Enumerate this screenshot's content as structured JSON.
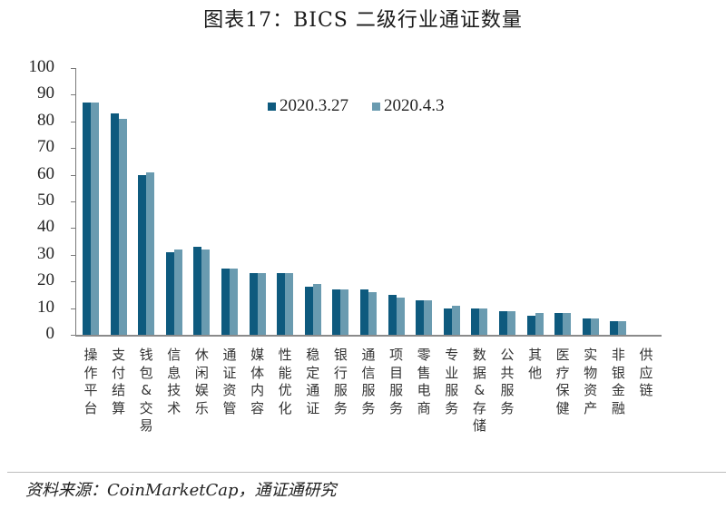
{
  "title": "图表17：BICS 二级行业通证数量",
  "source": "资料来源：CoinMarketCap，通证通研究",
  "colors": {
    "series0": "#0e5a7e",
    "series1": "#6a9bb0"
  },
  "chart_data": {
    "type": "bar",
    "title": "图表17：BICS 二级行业通证数量",
    "xlabel": "",
    "ylabel": "",
    "ylim": [
      0,
      100
    ],
    "yticks": [
      0,
      10,
      20,
      30,
      40,
      50,
      60,
      70,
      80,
      90,
      100
    ],
    "grid": false,
    "legend_position": "top-center",
    "categories": [
      "操作平台",
      "支付结算",
      "钱包&交易",
      "信息技术",
      "休闲娱乐",
      "通证资管",
      "媒体内容",
      "性能优化",
      "稳定通证",
      "银行服务",
      "通信服务",
      "项目服务",
      "零售电商",
      "专业服务",
      "数据&存储",
      "公共服务",
      "其他",
      "医疗保健",
      "实物资产",
      "非银金融",
      "供应链"
    ],
    "series": [
      {
        "name": "2020.3.27",
        "color": "#0e5a7e",
        "values": [
          87,
          83,
          60,
          31,
          33,
          25,
          23,
          23,
          18,
          17,
          17,
          15,
          13,
          10,
          10,
          9,
          7,
          8,
          6,
          5,
          0
        ]
      },
      {
        "name": "2020.4.3",
        "color": "#6a9bb0",
        "values": [
          87,
          81,
          61,
          32,
          32,
          25,
          23,
          23,
          19,
          17,
          16,
          14,
          13,
          11,
          10,
          9,
          8,
          8,
          6,
          5,
          0
        ]
      }
    ]
  }
}
